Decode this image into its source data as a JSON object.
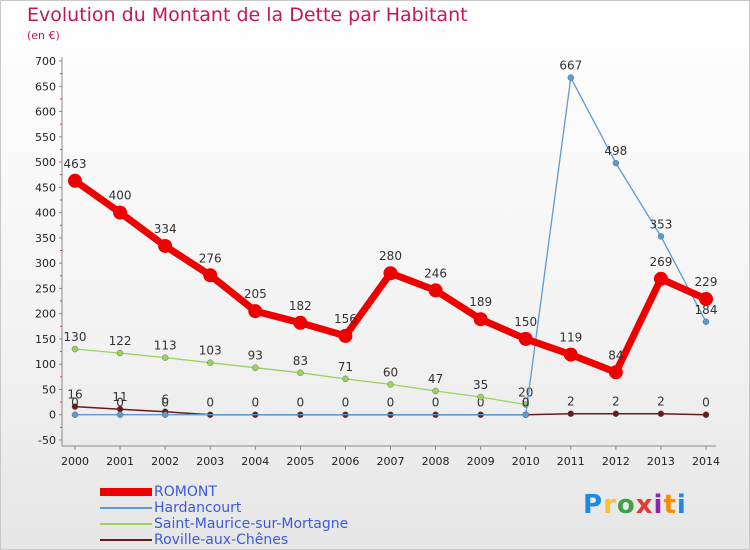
{
  "title": "Evolution du Montant de la Dette par Habitant",
  "unit": "(en €)",
  "logo": {
    "text": "Proxiti",
    "colors": [
      "#1e88e5",
      "#fbc02d",
      "#43a047",
      "#e53935",
      "#8e24aa",
      "#fb8c00",
      "#1e88e5"
    ]
  },
  "chart_data": {
    "type": "line",
    "x": [
      "2000",
      "2001",
      "2002",
      "2003",
      "2004",
      "2005",
      "2006",
      "2007",
      "2008",
      "2009",
      "2010",
      "2011",
      "2012",
      "2013",
      "2014"
    ],
    "ylim": [
      -50,
      700
    ],
    "yticks": [
      "-50",
      "0",
      "50",
      "100",
      "150",
      "200",
      "250",
      "300",
      "350",
      "400",
      "450",
      "500",
      "550",
      "600",
      "650",
      "700"
    ],
    "grid": false,
    "legend_position": "bottom-left",
    "series": [
      {
        "name": "ROMONT",
        "color": "#ee0000",
        "width": 7,
        "values": [
          463,
          400,
          334,
          276,
          205,
          182,
          156,
          280,
          246,
          189,
          150,
          119,
          84,
          269,
          229
        ],
        "labels": [
          "463",
          "400",
          "334",
          "276",
          "205",
          "182",
          "156",
          "280",
          "246",
          "189",
          "150",
          "119",
          "84",
          "269",
          "229"
        ]
      },
      {
        "name": "Hardancourt",
        "color": "#5b9bd5",
        "width": 1.3,
        "values": [
          0,
          0,
          0,
          null,
          null,
          null,
          null,
          null,
          null,
          null,
          0,
          667,
          498,
          353,
          184
        ],
        "labels": [
          "0",
          "0",
          "0",
          "",
          "",
          "",
          "",
          "",
          "",
          "",
          "0",
          "667",
          "498",
          "353",
          "184"
        ]
      },
      {
        "name": "Saint-Maurice-sur-Mortagne",
        "color": "#99d35f",
        "width": 1.3,
        "values": [
          130,
          122,
          113,
          103,
          93,
          83,
          71,
          60,
          47,
          35,
          20,
          null,
          null,
          null,
          null
        ],
        "labels": [
          "130",
          "122",
          "113",
          "103",
          "93",
          "83",
          "71",
          "60",
          "47",
          "35",
          "20",
          "",
          "",
          "",
          ""
        ]
      },
      {
        "name": "Roville-aux-Chênes",
        "color": "#6b1a1a",
        "width": 1.5,
        "values": [
          16,
          11,
          6,
          0,
          0,
          0,
          0,
          0,
          0,
          0,
          0,
          2,
          2,
          2,
          0
        ],
        "labels": [
          "16",
          "11",
          "6",
          "0",
          "0",
          "0",
          "0",
          "0",
          "0",
          "0",
          "0",
          "2",
          "2",
          "2",
          "0"
        ]
      }
    ]
  }
}
